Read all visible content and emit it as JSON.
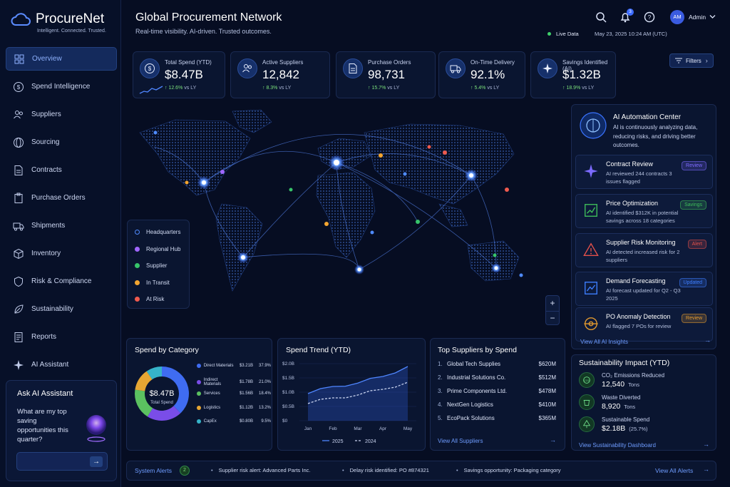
{
  "app": {
    "name": "ProcureNet",
    "tagline": "Intelligent. Connected. Trusted."
  },
  "sidebar": {
    "items": [
      {
        "label": "Overview",
        "icon": "grid-icon"
      },
      {
        "label": "Spend Intelligence",
        "icon": "dollar-icon"
      },
      {
        "label": "Suppliers",
        "icon": "users-icon"
      },
      {
        "label": "Sourcing",
        "icon": "globe-icon"
      },
      {
        "label": "Contracts",
        "icon": "document-icon"
      },
      {
        "label": "Purchase Orders",
        "icon": "clipboard-icon"
      },
      {
        "label": "Shipments",
        "icon": "truck-icon"
      },
      {
        "label": "Inventory",
        "icon": "box-icon"
      },
      {
        "label": "Risk & Compliance",
        "icon": "shield-icon"
      },
      {
        "label": "Sustainability",
        "icon": "leaf-icon"
      },
      {
        "label": "Reports",
        "icon": "report-icon"
      },
      {
        "label": "AI Assistant",
        "icon": "sparkle-icon"
      }
    ],
    "assistant": {
      "title": "Ask AI Assistant",
      "question": "What are my top saving opportunities this quarter?",
      "input_placeholder": ""
    }
  },
  "header": {
    "title": "Global Procurement Network",
    "subtitle": "Real-time visibility. AI-driven. Trusted outcomes.",
    "notifications": "3",
    "user_initials": "AM",
    "user_name": "Admin",
    "live_label": "Live Data",
    "timestamp": "May 23, 2025 10:24 AM (UTC)",
    "filters_label": "Filters"
  },
  "kpis": [
    {
      "label": "Total Spend (YTD)",
      "value": "$8.47B",
      "delta": "↑ 12.6%",
      "suffix": "vs LY",
      "icon": "dollar-icon"
    },
    {
      "label": "Active Suppliers",
      "value": "12,842",
      "delta": "↑ 8.3%",
      "suffix": "vs LY",
      "icon": "users-icon"
    },
    {
      "label": "Purchase Orders",
      "value": "98,731",
      "delta": "↑ 15.7%",
      "suffix": "vs LY",
      "icon": "document-icon"
    },
    {
      "label": "On-Time Delivery",
      "value": "92.1%",
      "delta": "↑ 5.4%",
      "suffix": "vs LY",
      "icon": "truck-icon"
    },
    {
      "label": "Savings Identified (AI)",
      "value": "$1.32B",
      "delta": "↑ 18.9%",
      "suffix": "vs LY",
      "icon": "sparkle-icon"
    }
  ],
  "map": {
    "legend": [
      {
        "label": "Headquarters",
        "color": "#4f8bff"
      },
      {
        "label": "Regional Hub",
        "color": "#a066ff"
      },
      {
        "label": "Supplier",
        "color": "#37c46a"
      },
      {
        "label": "In Transit",
        "color": "#f3a531"
      },
      {
        "label": "At Risk",
        "color": "#ef5a4e"
      }
    ],
    "zoom_in": "+",
    "zoom_out": "−"
  },
  "ai_center": {
    "title": "AI Automation Center",
    "description": "AI is continuously analyzing data, reducing risks, and driving better outcomes.",
    "items": [
      {
        "title": "Contract Review",
        "desc": "AI reviewed 244 contracts 3 issues flagged",
        "badge": "Review",
        "badge_color": "#7d6bff",
        "icon": "sparkle-icon"
      },
      {
        "title": "Price Optimization",
        "desc": "AI identified $312K in potential savings across 18 categories",
        "badge": "Savings",
        "badge_color": "#3fbf5a",
        "icon": "chart-icon"
      },
      {
        "title": "Supplier Risk Monitoring",
        "desc": "AI detected increased risk for 2 suppliers",
        "badge": "Alert",
        "badge_color": "#e2504a",
        "icon": "warning-icon"
      },
      {
        "title": "Demand Forecasting",
        "desc": "AI forecast updated for Q2 - Q3 2025",
        "badge": "Updated",
        "badge_color": "#3d7eff",
        "icon": "trend-icon"
      },
      {
        "title": "PO Anomaly Detection",
        "desc": "AI flagged 7 POs for review",
        "badge": "Review",
        "badge_color": "#e39a2f",
        "icon": "target-icon"
      }
    ],
    "link": "View All AI Insights"
  },
  "spend_category": {
    "title": "Spend by Category",
    "center_value": "$8.47B",
    "center_label": "Total Spend",
    "rows": [
      {
        "name": "Direct Materials",
        "value": "$3.21B",
        "pct": "37.9%",
        "color": "#3f6cf2"
      },
      {
        "name": "Indirect Materials",
        "value": "$1.78B",
        "pct": "21.0%",
        "color": "#7a4de8"
      },
      {
        "name": "Services",
        "value": "$1.56B",
        "pct": "18.4%",
        "color": "#5bc160"
      },
      {
        "name": "Logistics",
        "value": "$1.12B",
        "pct": "13.2%",
        "color": "#e6a633"
      },
      {
        "name": "CapEx",
        "value": "$0.80B",
        "pct": "9.5%",
        "color": "#36b3c9"
      }
    ]
  },
  "chart_data": {
    "type": "line",
    "title": "Spend Trend (YTD)",
    "x": [
      "Jan",
      "Feb",
      "Mar",
      "Apr",
      "May"
    ],
    "yticks": [
      "$2.0B",
      "$1.5B",
      "$1.0B",
      "$0.5B",
      "$0"
    ],
    "ylim": [
      0,
      2.0
    ],
    "series": [
      {
        "name": "2025",
        "values": [
          0.95,
          1.2,
          1.32,
          1.55,
          1.9
        ],
        "color": "#4f86ff"
      },
      {
        "name": "2024",
        "values": [
          0.6,
          0.8,
          0.9,
          1.1,
          1.35
        ],
        "color": "#c9d3ef"
      }
    ]
  },
  "top_suppliers": {
    "title": "Top Suppliers by Spend",
    "rows": [
      {
        "rank": "1.",
        "name": "Global Tech Supplies",
        "value": "$620M"
      },
      {
        "rank": "2.",
        "name": "Industrial Solutions Co.",
        "value": "$512M"
      },
      {
        "rank": "3.",
        "name": "Prime Components Ltd.",
        "value": "$478M"
      },
      {
        "rank": "4.",
        "name": "NextGen Logistics",
        "value": "$410M"
      },
      {
        "rank": "5.",
        "name": "EcoPack Solutions",
        "value": "$365M"
      }
    ],
    "link": "View All Suppliers"
  },
  "sustainability": {
    "title": "Sustainability Impact (YTD)",
    "rows": [
      {
        "label": "CO₂ Emissions Reduced",
        "value": "12,540",
        "unit": "Tons",
        "icon": "co2-icon"
      },
      {
        "label": "Waste Diverted",
        "value": "8,920",
        "unit": "Tons",
        "icon": "recycle-icon"
      },
      {
        "label": "Sustainable Spend",
        "value": "$2.18B",
        "unit": "(25.7%)",
        "icon": "tree-icon"
      }
    ],
    "link": "View Sustainability Dashboard"
  },
  "alerts": {
    "label": "System Alerts",
    "count": "2",
    "items": [
      "Supplier risk alert: Advanced Parts Inc.",
      "Delay risk identified: PO #874321",
      "Savings opportunity: Packaging category"
    ],
    "link": "View All Alerts"
  }
}
